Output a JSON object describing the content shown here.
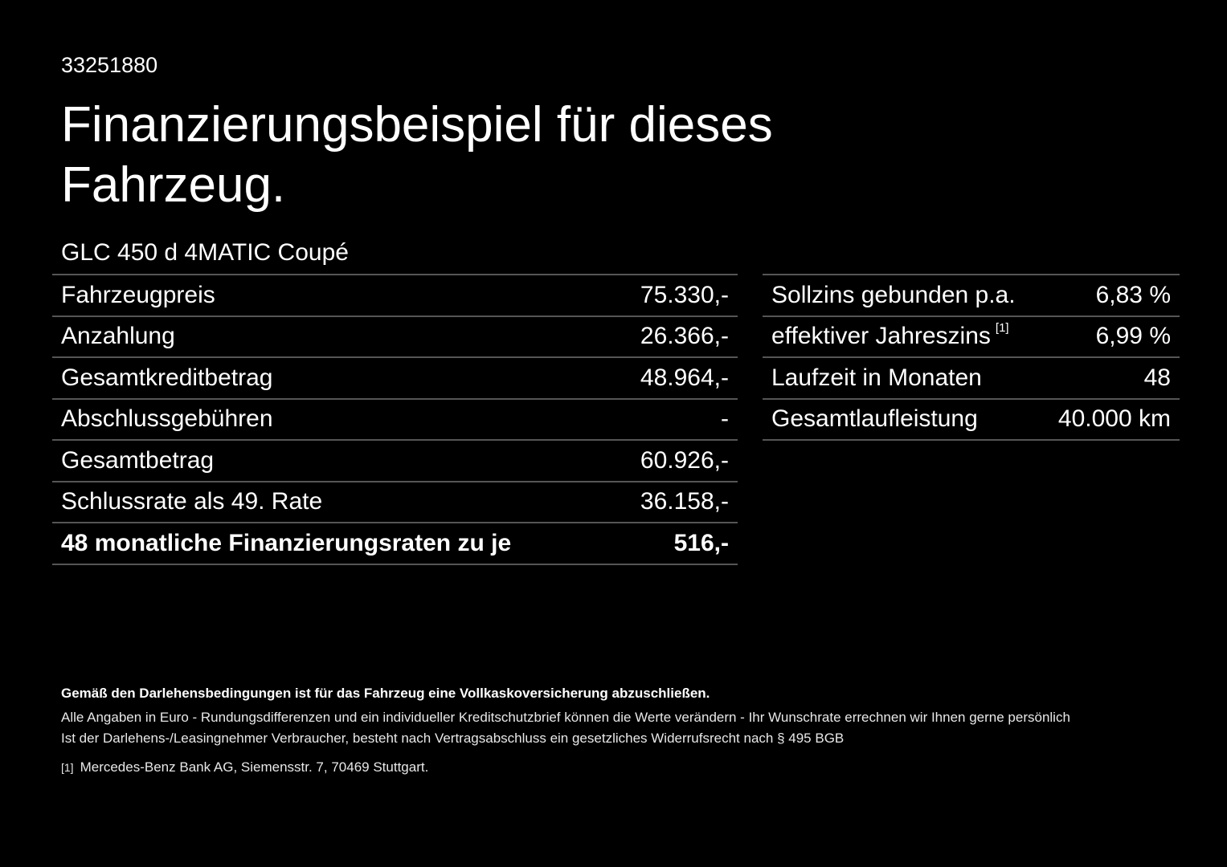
{
  "vehicle_id": "33251880",
  "title": "Finanzierungsbeispiel für dieses Fahrzeug.",
  "model": "GLC 450 d 4MATIC Coupé",
  "left_table": [
    {
      "label": "Fahrzeugpreis",
      "value": "75.330,-"
    },
    {
      "label": "Anzahlung",
      "value": "26.366,-"
    },
    {
      "label": "Gesamtkreditbetrag",
      "value": "48.964,-"
    },
    {
      "label": "Abschlussgebühren",
      "value": "-"
    },
    {
      "label": "Gesamtbetrag",
      "value": "60.926,-"
    },
    {
      "label": "Schlussrate als 49. Rate",
      "value": "36.158,-"
    },
    {
      "label": "48 monatliche Finanzierungsraten zu je",
      "value": "516,-"
    }
  ],
  "right_table": [
    {
      "label": "Sollzins gebunden p.a.",
      "note": "",
      "value": "6,83 %"
    },
    {
      "label": "effektiver Jahreszins",
      "note": "[1]",
      "value": "6,99 %"
    },
    {
      "label": "Laufzeit in Monaten",
      "note": "",
      "value": "48"
    },
    {
      "label": "Gesamtlaufleistung",
      "note": "",
      "value": "40.000 km"
    }
  ],
  "footer": {
    "insurance_note": "Gemäß den Darlehensbedingungen ist für das Fahrzeug eine Vollkaskoversicherung abzuschließen.",
    "euro_note": "Alle Angaben in Euro - Rundungsdifferenzen und ein individueller Kreditschutzbrief können die Werte verändern - Ihr Wunschrate errechnen wir Ihnen gerne persönlich",
    "withdrawal_note": "Ist der Darlehens-/Leasingnehmer Verbraucher, besteht nach Vertragsabschluss ein gesetzliches Widerrufsrecht nach § 495 BGB",
    "footnote_marker": "[1]",
    "footnote_text": "Mercedes-Benz Bank AG, Siemensstr. 7, 70469 Stuttgart."
  }
}
